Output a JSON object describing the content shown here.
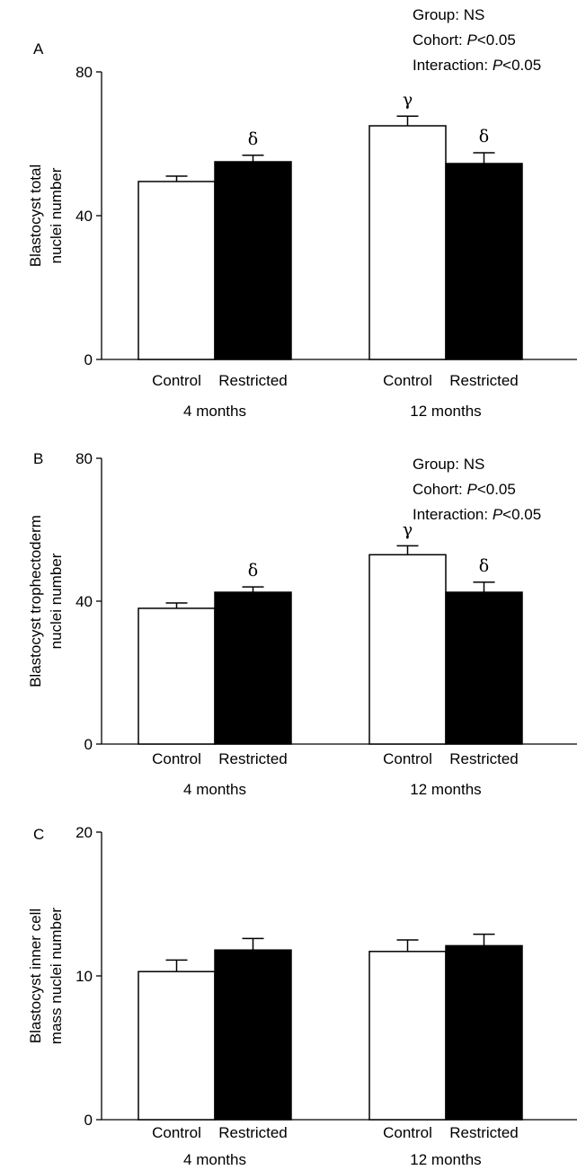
{
  "chart_data": [
    {
      "type": "bar",
      "panel": "A",
      "ylabel": [
        "Blastocyst total",
        "nuclei number"
      ],
      "ylim": [
        0,
        80
      ],
      "yticks": [
        "0",
        "40",
        "80"
      ],
      "categories": [
        "Control",
        "Restricted",
        "Control",
        "Restricted"
      ],
      "groups": [
        "4 months",
        "12 months"
      ],
      "values": [
        49.5,
        55,
        65,
        54.5
      ],
      "errors": [
        1.5,
        1.8,
        2.7,
        3.0
      ],
      "bar_colors": [
        "#ffffff",
        "#000000",
        "#ffffff",
        "#000000"
      ],
      "markers": [
        "",
        "δ",
        "γ",
        "δ"
      ],
      "stats": {
        "line1": "Group: NS",
        "line2_prefix": "Cohort: ",
        "line2_italic": "P",
        "line2_suffix": "<0.05",
        "line3_prefix": "Interaction: ",
        "line3_italic": "P",
        "line3_suffix": "<0.05"
      }
    },
    {
      "type": "bar",
      "panel": "B",
      "ylabel": [
        "Blastocyst trophectoderm",
        "nuclei number"
      ],
      "ylim": [
        0,
        80
      ],
      "yticks": [
        "0",
        "40",
        "80"
      ],
      "categories": [
        "Control",
        "Restricted",
        "Control",
        "Restricted"
      ],
      "groups": [
        "4 months",
        "12 months"
      ],
      "values": [
        38,
        42.5,
        53,
        42.5
      ],
      "errors": [
        1.5,
        1.5,
        2.5,
        2.8
      ],
      "bar_colors": [
        "#ffffff",
        "#000000",
        "#ffffff",
        "#000000"
      ],
      "markers": [
        "",
        "δ",
        "γ",
        "δ"
      ],
      "stats": {
        "line1": "Group: NS",
        "line2_prefix": "Cohort: ",
        "line2_italic": "P",
        "line2_suffix": "<0.05",
        "line3_prefix": "Interaction: ",
        "line3_italic": "P",
        "line3_suffix": "<0.05"
      }
    },
    {
      "type": "bar",
      "panel": "C",
      "ylabel": [
        "Blastocyst inner cell",
        "mass nuclei number"
      ],
      "ylim": [
        0,
        20
      ],
      "yticks": [
        "0",
        "10",
        "20"
      ],
      "categories": [
        "Control",
        "Restricted",
        "Control",
        "Restricted"
      ],
      "groups": [
        "4 months",
        "12 months"
      ],
      "values": [
        10.3,
        11.8,
        11.7,
        12.1
      ],
      "errors": [
        0.8,
        0.8,
        0.8,
        0.8
      ],
      "bar_colors": [
        "#ffffff",
        "#000000",
        "#ffffff",
        "#000000"
      ],
      "markers": [
        "",
        "",
        "",
        ""
      ],
      "stats": null
    }
  ]
}
